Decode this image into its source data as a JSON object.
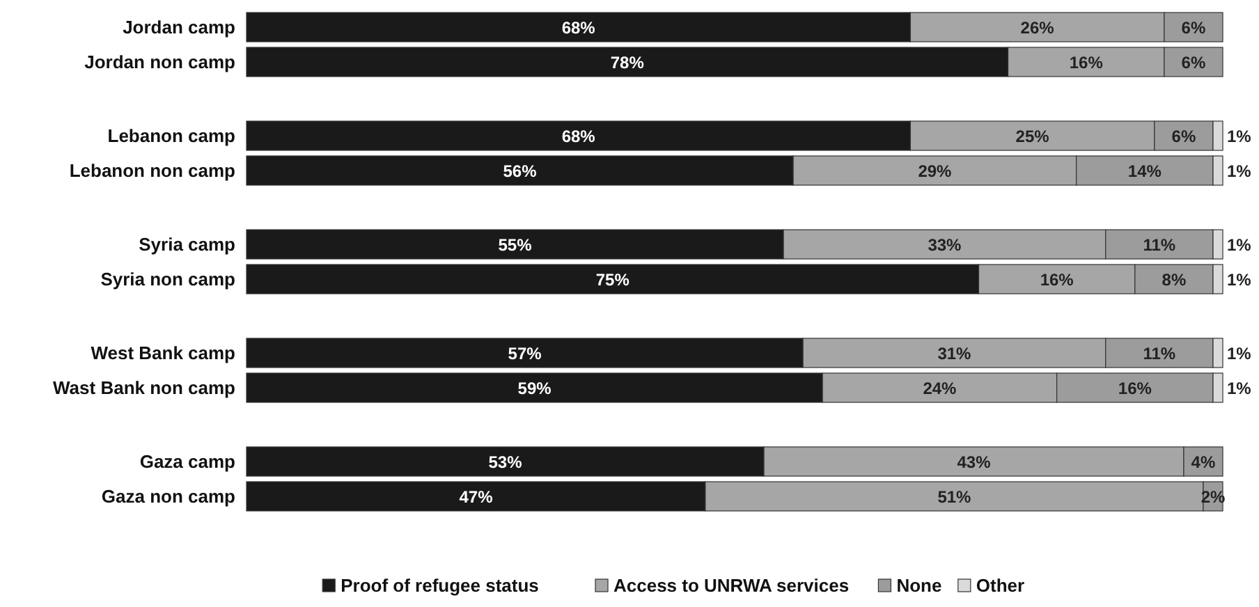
{
  "chart_data": {
    "type": "bar",
    "orientation": "horizontal",
    "stacked": true,
    "legend": "bottom",
    "categories": [
      "Jordan camp",
      "Jordan non camp",
      "Lebanon camp",
      "Lebanon non camp",
      "Syria camp",
      "Syria non camp",
      "West Bank camp",
      "Wast Bank non camp",
      "Gaza camp",
      "Gaza non camp"
    ],
    "series": [
      {
        "name": "Proof of refugee status",
        "color": "#1a1a1a",
        "values": [
          68,
          78,
          68,
          56,
          55,
          75,
          57,
          59,
          53,
          47
        ],
        "value_labels": [
          "68%",
          "78%",
          "68%",
          "56%",
          "55%",
          "75%",
          "57%",
          "59%",
          "53%",
          "47%"
        ]
      },
      {
        "name": "Access to UNRWA services",
        "color": "#a6a6a6",
        "values": [
          26,
          16,
          25,
          29,
          33,
          16,
          31,
          24,
          43,
          51
        ],
        "value_labels": [
          "26%",
          "16%",
          "25%",
          "29%",
          "33%",
          "16%",
          "31%",
          "24%",
          "43%",
          "51%"
        ]
      },
      {
        "name": "None",
        "color": "#9c9c9c",
        "values": [
          6,
          6,
          6,
          14,
          11,
          8,
          11,
          16,
          4,
          2
        ],
        "value_labels": [
          "6%",
          "6%",
          "6%",
          "14%",
          "11%",
          "8%",
          "11%",
          "16%",
          "4%",
          "2%"
        ]
      },
      {
        "name": "Other",
        "color": "#dadada",
        "values": [
          null,
          null,
          1,
          1,
          1,
          1,
          1,
          1,
          null,
          null
        ],
        "value_labels": [
          null,
          null,
          "1%",
          "1%",
          "1%",
          "1%",
          "1%",
          "1%",
          null,
          null
        ]
      }
    ]
  }
}
